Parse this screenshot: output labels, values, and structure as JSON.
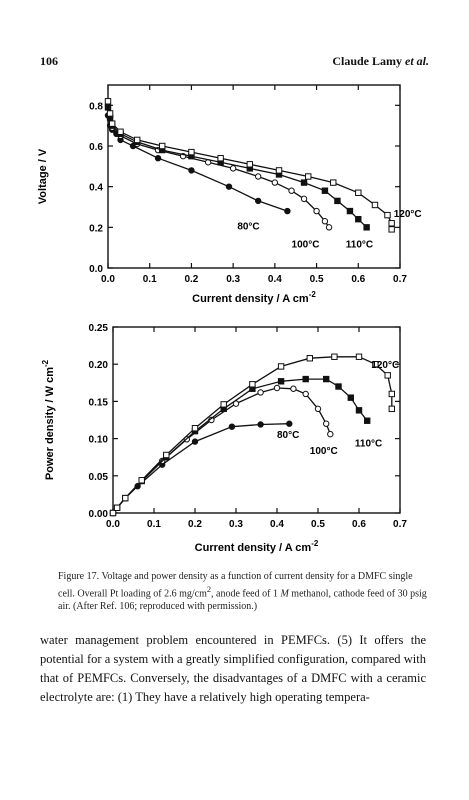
{
  "header": {
    "page_number": "106",
    "author_prefix": "Claude Lamy ",
    "author_italic": "et al."
  },
  "figure": {
    "caption_label": "Figure 17.",
    "caption_part1": "Voltage and power density as a function of current density for a DMFC single cell. Overall Pt loading of 2.6 mg/cm",
    "caption_sup": "2",
    "caption_part2": ", anode feed of 1 ",
    "caption_molar": "M",
    "caption_part3": " methanol, cathode feed of 30 psig air. (After Ref. 106; reproduced with permission.)"
  },
  "body": {
    "text": "water management problem encountered in PEMFCs. (5) It offers the potential for a system with a greatly simplified configuration, compared with that of PEMFCs. Conversely, the disadvantages of a DMFC with a ceramic electrolyte are: (1) They have a relatively high operating tempera-"
  },
  "chart_data": [
    {
      "type": "line",
      "xlabel": "Current density / A cm",
      "xlabel_sup": "-2",
      "ylabel": "Voltage / V",
      "xlim": [
        0.0,
        0.7
      ],
      "ylim": [
        0.0,
        0.9
      ],
      "xticks": [
        "0.0",
        "0.1",
        "0.2",
        "0.3",
        "0.4",
        "0.5",
        "0.6",
        "0.7"
      ],
      "yticks": [
        "0.0",
        "0.2",
        "0.4",
        "0.6",
        "0.8"
      ],
      "annotations": [
        {
          "text": "80°C",
          "x": 0.31,
          "y": 0.21
        },
        {
          "text": "100°C",
          "x": 0.44,
          "y": 0.12
        },
        {
          "text": "110°C",
          "x": 0.57,
          "y": 0.12
        },
        {
          "text": "120°C",
          "x": 0.685,
          "y": 0.27
        }
      ],
      "series": [
        {
          "marker": "filled-circle",
          "x": [
            0.0,
            0.005,
            0.01,
            0.02,
            0.03,
            0.06,
            0.12,
            0.2,
            0.29,
            0.36,
            0.43
          ],
          "y": [
            0.75,
            0.7,
            0.68,
            0.66,
            0.63,
            0.6,
            0.54,
            0.48,
            0.4,
            0.33,
            0.28
          ]
        },
        {
          "marker": "open-circle",
          "x": [
            0.0,
            0.005,
            0.01,
            0.03,
            0.07,
            0.12,
            0.18,
            0.24,
            0.3,
            0.36,
            0.4,
            0.44,
            0.47,
            0.5,
            0.52,
            0.53
          ],
          "y": [
            0.8,
            0.74,
            0.69,
            0.65,
            0.61,
            0.58,
            0.55,
            0.52,
            0.49,
            0.45,
            0.42,
            0.38,
            0.34,
            0.28,
            0.23,
            0.2
          ]
        },
        {
          "marker": "filled-square",
          "x": [
            0.0,
            0.005,
            0.01,
            0.03,
            0.07,
            0.13,
            0.2,
            0.27,
            0.34,
            0.41,
            0.47,
            0.52,
            0.55,
            0.58,
            0.6,
            0.62
          ],
          "y": [
            0.79,
            0.74,
            0.7,
            0.66,
            0.62,
            0.58,
            0.55,
            0.52,
            0.49,
            0.46,
            0.42,
            0.38,
            0.33,
            0.28,
            0.24,
            0.2
          ]
        },
        {
          "marker": "open-square",
          "x": [
            0.0,
            0.005,
            0.01,
            0.03,
            0.07,
            0.13,
            0.2,
            0.27,
            0.34,
            0.41,
            0.48,
            0.54,
            0.6,
            0.64,
            0.67,
            0.68,
            0.68
          ],
          "y": [
            0.82,
            0.76,
            0.71,
            0.67,
            0.63,
            0.6,
            0.57,
            0.54,
            0.51,
            0.48,
            0.45,
            0.42,
            0.37,
            0.31,
            0.26,
            0.22,
            0.19
          ]
        }
      ]
    },
    {
      "type": "line",
      "xlabel": "Current density / A cm",
      "xlabel_sup": "-2",
      "ylabel": "Power density / W cm",
      "ylabel_sup": "-2",
      "xlim": [
        0.0,
        0.7
      ],
      "ylim": [
        0.0,
        0.25
      ],
      "xticks": [
        "0.0",
        "0.1",
        "0.2",
        "0.3",
        "0.4",
        "0.5",
        "0.6",
        "0.7"
      ],
      "yticks": [
        "0.00",
        "0.05",
        "0.10",
        "0.15",
        "0.20",
        "0.25"
      ],
      "annotations": [
        {
          "text": "80°C",
          "x": 0.4,
          "y": 0.106
        },
        {
          "text": "100°C",
          "x": 0.48,
          "y": 0.085
        },
        {
          "text": "110°C",
          "x": 0.59,
          "y": 0.095
        },
        {
          "text": "120°C",
          "x": 0.63,
          "y": 0.2
        }
      ],
      "series": [
        {
          "marker": "filled-circle",
          "x": [
            0.0,
            0.01,
            0.03,
            0.06,
            0.12,
            0.2,
            0.29,
            0.36,
            0.43
          ],
          "y": [
            0.0,
            0.007,
            0.02,
            0.036,
            0.065,
            0.096,
            0.116,
            0.119,
            0.12
          ]
        },
        {
          "marker": "open-circle",
          "x": [
            0.0,
            0.01,
            0.03,
            0.07,
            0.12,
            0.18,
            0.24,
            0.3,
            0.36,
            0.4,
            0.44,
            0.47,
            0.5,
            0.52,
            0.53
          ],
          "y": [
            0.0,
            0.007,
            0.02,
            0.043,
            0.07,
            0.099,
            0.125,
            0.147,
            0.162,
            0.168,
            0.167,
            0.16,
            0.14,
            0.12,
            0.106
          ]
        },
        {
          "marker": "filled-square",
          "x": [
            0.0,
            0.01,
            0.03,
            0.07,
            0.13,
            0.2,
            0.27,
            0.34,
            0.41,
            0.47,
            0.52,
            0.55,
            0.58,
            0.6,
            0.62
          ],
          "y": [
            0.0,
            0.007,
            0.02,
            0.043,
            0.075,
            0.11,
            0.14,
            0.167,
            0.177,
            0.18,
            0.18,
            0.17,
            0.155,
            0.138,
            0.124
          ]
        },
        {
          "marker": "open-square",
          "x": [
            0.0,
            0.01,
            0.03,
            0.07,
            0.13,
            0.2,
            0.27,
            0.34,
            0.41,
            0.48,
            0.54,
            0.6,
            0.64,
            0.67,
            0.68,
            0.68
          ],
          "y": [
            0.0,
            0.007,
            0.02,
            0.044,
            0.078,
            0.114,
            0.146,
            0.173,
            0.197,
            0.208,
            0.21,
            0.21,
            0.2,
            0.185,
            0.16,
            0.14
          ]
        }
      ]
    }
  ]
}
